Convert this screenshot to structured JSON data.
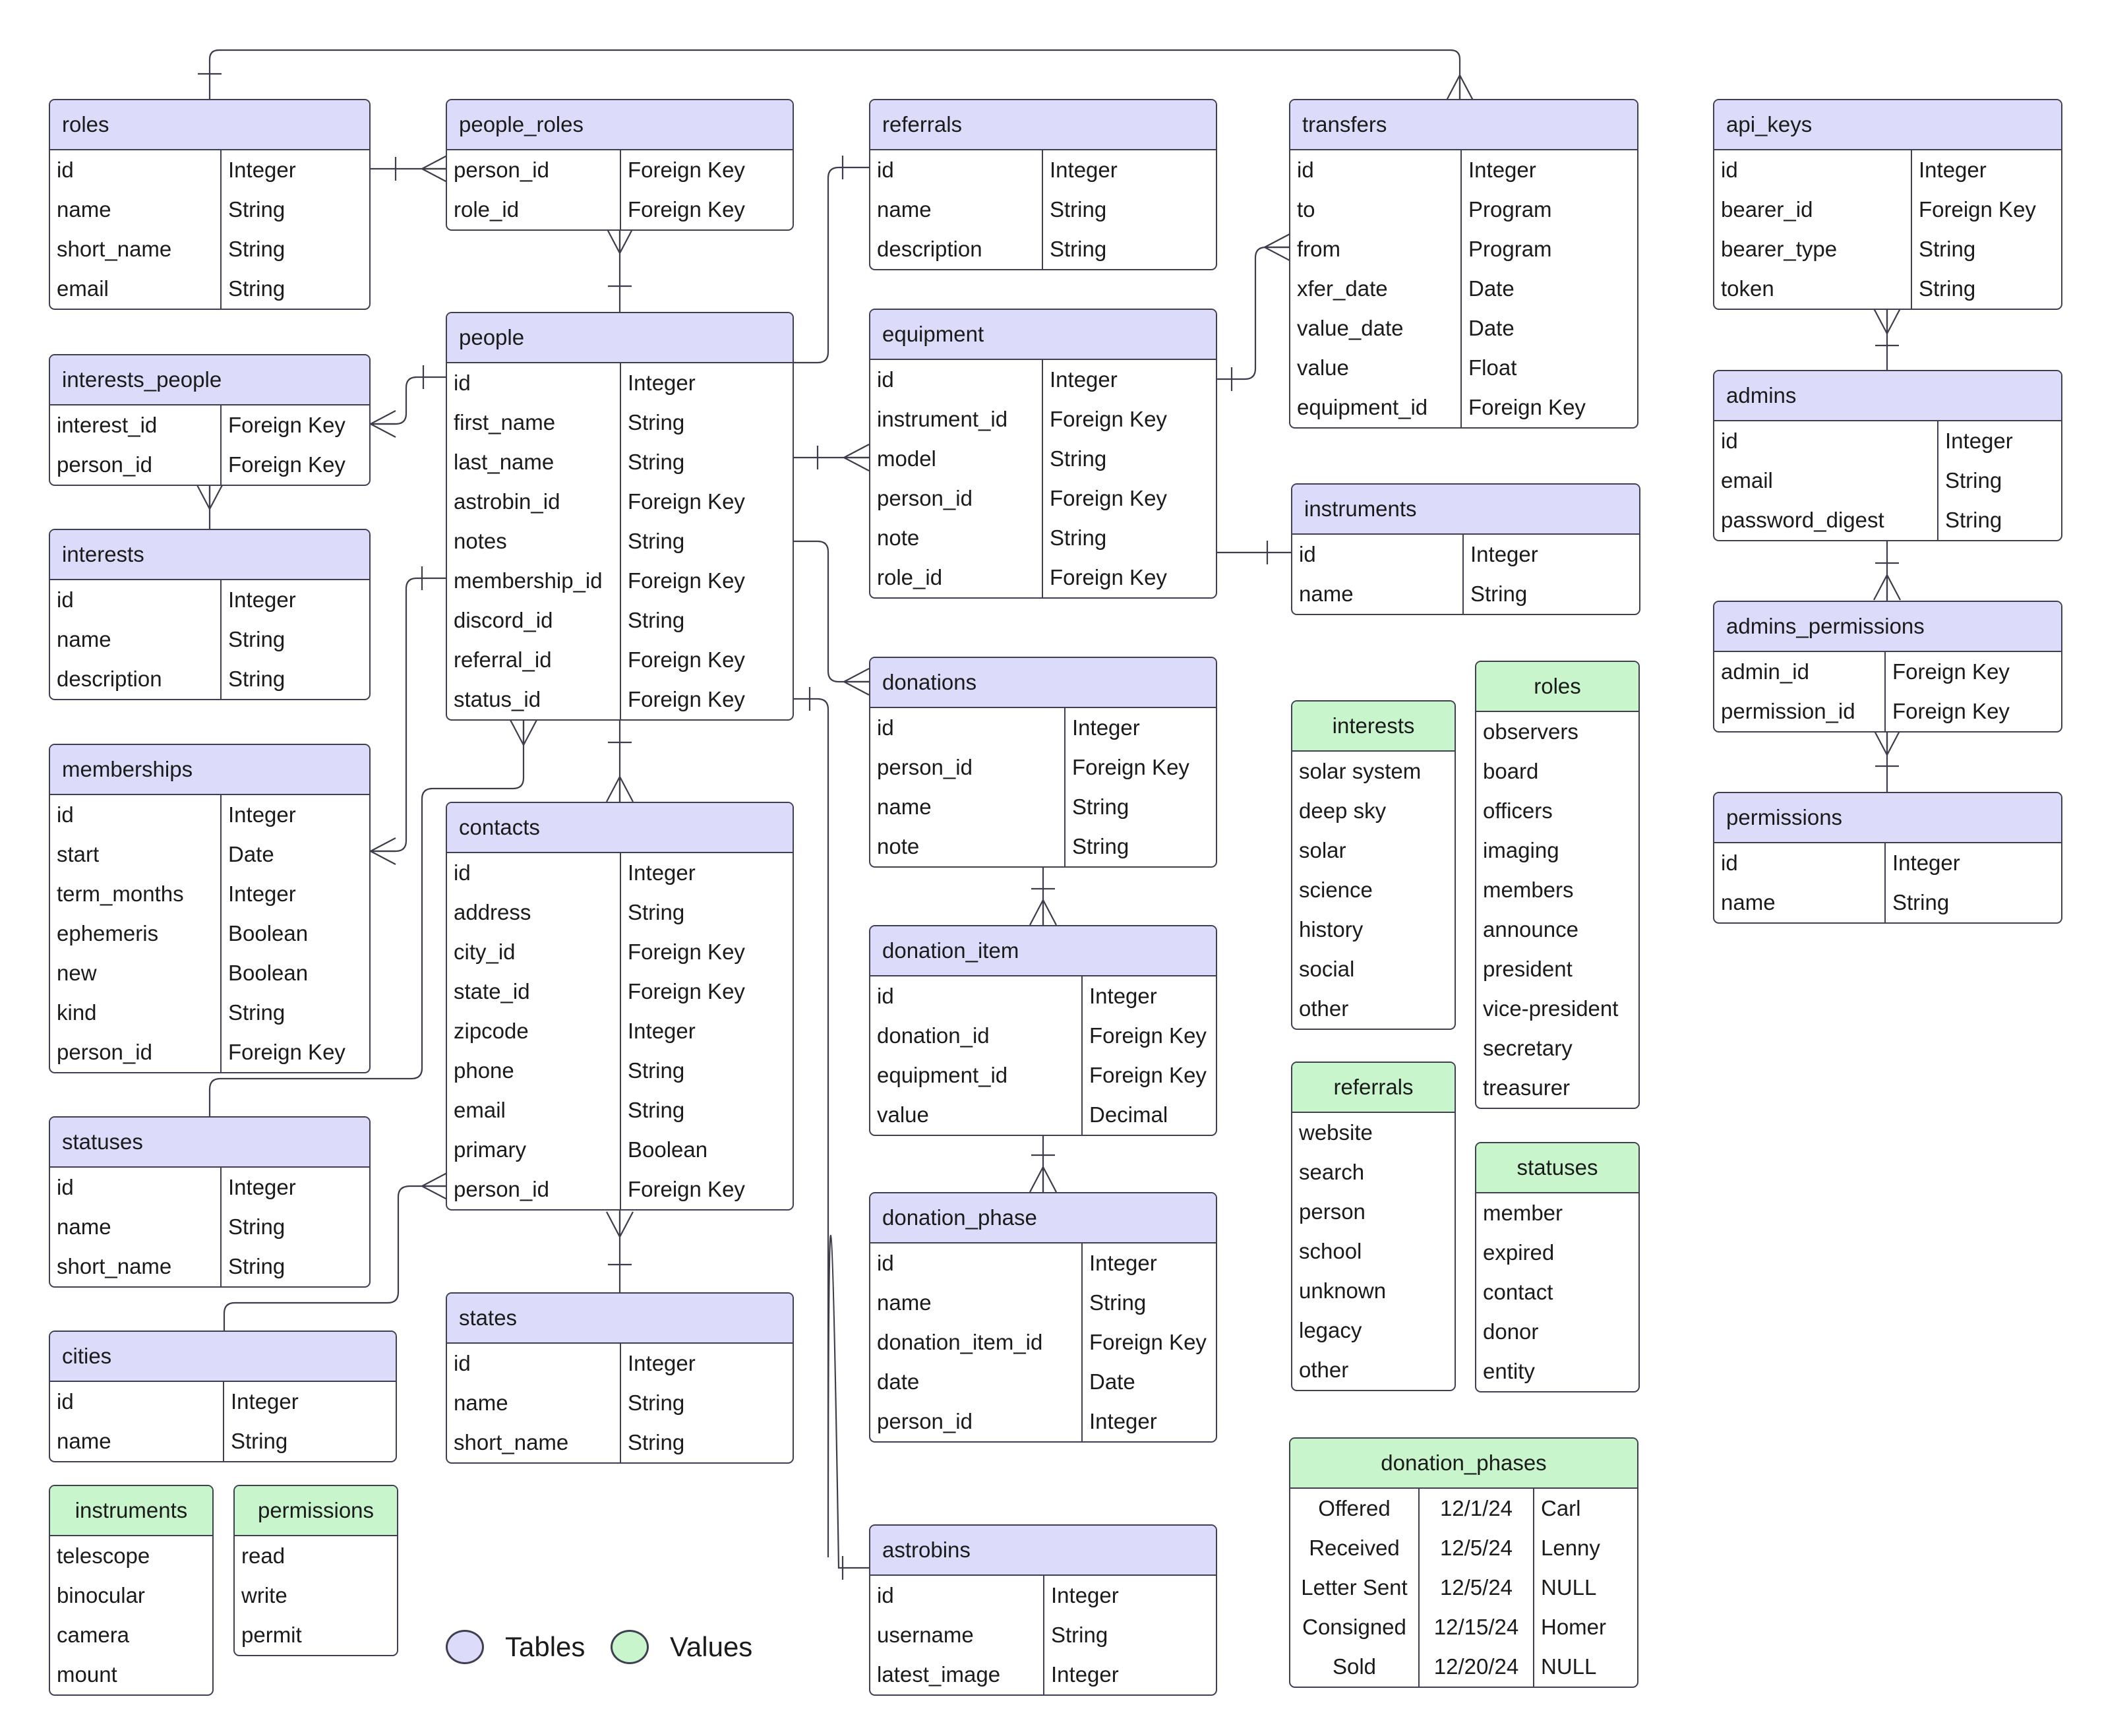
{
  "tables": {
    "roles": {
      "title": "roles",
      "rows": [
        [
          "id",
          "Integer"
        ],
        [
          "name",
          "String"
        ],
        [
          "short_name",
          "String"
        ],
        [
          "email",
          "String"
        ]
      ]
    },
    "people_roles": {
      "title": "people_roles",
      "rows": [
        [
          "person_id",
          "Foreign Key"
        ],
        [
          "role_id",
          "Foreign Key"
        ]
      ]
    },
    "referrals": {
      "title": "referrals",
      "rows": [
        [
          "id",
          "Integer"
        ],
        [
          "name",
          "String"
        ],
        [
          "description",
          "String"
        ]
      ]
    },
    "transfers": {
      "title": "transfers",
      "rows": [
        [
          "id",
          "Integer"
        ],
        [
          "to",
          "Program"
        ],
        [
          "from",
          "Program"
        ],
        [
          "xfer_date",
          "Date"
        ],
        [
          "value_date",
          "Date"
        ],
        [
          "value",
          "Float"
        ],
        [
          "equipment_id",
          "Foreign Key"
        ]
      ]
    },
    "api_keys": {
      "title": "api_keys",
      "rows": [
        [
          "id",
          "Integer"
        ],
        [
          "bearer_id",
          "Foreign Key"
        ],
        [
          "bearer_type",
          "String"
        ],
        [
          "token",
          "String"
        ]
      ]
    },
    "people": {
      "title": "people",
      "rows": [
        [
          "id",
          "Integer"
        ],
        [
          "first_name",
          "String"
        ],
        [
          "last_name",
          "String"
        ],
        [
          "astrobin_id",
          "Foreign Key"
        ],
        [
          "notes",
          "String"
        ],
        [
          "membership_id",
          "Foreign Key"
        ],
        [
          "discord_id",
          "String"
        ],
        [
          "referral_id",
          "Foreign Key"
        ],
        [
          "status_id",
          "Foreign Key"
        ]
      ]
    },
    "equipment": {
      "title": "equipment",
      "rows": [
        [
          "id",
          "Integer"
        ],
        [
          "instrument_id",
          "Foreign Key"
        ],
        [
          "model",
          "String"
        ],
        [
          "person_id",
          "Foreign Key"
        ],
        [
          "note",
          "String"
        ],
        [
          "role_id",
          "Foreign Key"
        ]
      ]
    },
    "admins": {
      "title": "admins",
      "rows": [
        [
          "id",
          "Integer"
        ],
        [
          "email",
          "String"
        ],
        [
          "password_digest",
          "String"
        ]
      ]
    },
    "interests_people": {
      "title": "interests_people",
      "rows": [
        [
          "interest_id",
          "Foreign Key"
        ],
        [
          "person_id",
          "Foreign Key"
        ]
      ]
    },
    "instruments": {
      "title": "instruments",
      "rows": [
        [
          "id",
          "Integer"
        ],
        [
          "name",
          "String"
        ]
      ]
    },
    "interests": {
      "title": "interests",
      "rows": [
        [
          "id",
          "Integer"
        ],
        [
          "name",
          "String"
        ],
        [
          "description",
          "String"
        ]
      ]
    },
    "admins_permissions": {
      "title": "admins_permissions",
      "rows": [
        [
          "admin_id",
          "Foreign Key"
        ],
        [
          "permission_id",
          "Foreign Key"
        ]
      ]
    },
    "donations": {
      "title": "donations",
      "rows": [
        [
          "id",
          "Integer"
        ],
        [
          "person_id",
          "Foreign Key"
        ],
        [
          "name",
          "String"
        ],
        [
          "note",
          "String"
        ]
      ]
    },
    "memberships": {
      "title": "memberships",
      "rows": [
        [
          "id",
          "Integer"
        ],
        [
          "start",
          "Date"
        ],
        [
          "term_months",
          "Integer"
        ],
        [
          "ephemeris",
          "Boolean"
        ],
        [
          "new",
          "Boolean"
        ],
        [
          "kind",
          "String"
        ],
        [
          "person_id",
          "Foreign Key"
        ]
      ]
    },
    "contacts": {
      "title": "contacts",
      "rows": [
        [
          "id",
          "Integer"
        ],
        [
          "address",
          "String"
        ],
        [
          "city_id",
          "Foreign Key"
        ],
        [
          "state_id",
          "Foreign Key"
        ],
        [
          "zipcode",
          "Integer"
        ],
        [
          "phone",
          "String"
        ],
        [
          "email",
          "String"
        ],
        [
          "primary",
          "Boolean"
        ],
        [
          "person_id",
          "Foreign Key"
        ]
      ]
    },
    "permissions": {
      "title": "permissions",
      "rows": [
        [
          "id",
          "Integer"
        ],
        [
          "name",
          "String"
        ]
      ]
    },
    "donation_item": {
      "title": "donation_item",
      "rows": [
        [
          "id",
          "Integer"
        ],
        [
          "donation_id",
          "Foreign Key"
        ],
        [
          "equipment_id",
          "Foreign Key"
        ],
        [
          "value",
          "Decimal"
        ]
      ]
    },
    "statuses": {
      "title": "statuses",
      "rows": [
        [
          "id",
          "Integer"
        ],
        [
          "name",
          "String"
        ],
        [
          "short_name",
          "String"
        ]
      ]
    },
    "donation_phase": {
      "title": "donation_phase",
      "rows": [
        [
          "id",
          "Integer"
        ],
        [
          "name",
          "String"
        ],
        [
          "donation_item_id",
          "Foreign Key"
        ],
        [
          "date",
          "Date"
        ],
        [
          "person_id",
          "Integer"
        ]
      ]
    },
    "states": {
      "title": "states",
      "rows": [
        [
          "id",
          "Integer"
        ],
        [
          "name",
          "String"
        ],
        [
          "short_name",
          "String"
        ]
      ]
    },
    "cities": {
      "title": "cities",
      "rows": [
        [
          "id",
          "Integer"
        ],
        [
          "name",
          "String"
        ]
      ]
    },
    "astrobins": {
      "title": "astrobins",
      "rows": [
        [
          "id",
          "Integer"
        ],
        [
          "username",
          "String"
        ],
        [
          "latest_image",
          "Integer"
        ]
      ]
    }
  },
  "value_lists": {
    "interests": {
      "title": "interests",
      "items": [
        "solar system",
        "deep sky",
        "solar",
        "science",
        "history",
        "social",
        "other"
      ]
    },
    "roles": {
      "title": "roles",
      "items": [
        "observers",
        "board",
        "officers",
        "imaging",
        "members",
        "announce",
        "president",
        "vice-president",
        "secretary",
        "treasurer"
      ]
    },
    "referrals": {
      "title": "referrals",
      "items": [
        "website",
        "search",
        "person",
        "school",
        "unknown",
        "legacy",
        "other"
      ]
    },
    "statuses": {
      "title": "statuses",
      "items": [
        "member",
        "expired",
        "contact",
        "donor",
        "entity"
      ]
    },
    "instruments": {
      "title": "instruments",
      "items": [
        "telescope",
        "binocular",
        "camera",
        "mount"
      ]
    },
    "permissions": {
      "title": "permissions",
      "items": [
        "read",
        "write",
        "permit"
      ]
    }
  },
  "donation_phases": {
    "title": "donation_phases",
    "rows": [
      [
        "Offered",
        "12/1/24",
        "Carl"
      ],
      [
        "Received",
        "12/5/24",
        "Lenny"
      ],
      [
        "Letter Sent",
        "12/5/24",
        "NULL"
      ],
      [
        "Consigned",
        "12/15/24",
        "Homer"
      ],
      [
        "Sold",
        "12/20/24",
        "NULL"
      ]
    ]
  },
  "legend": {
    "tables_label": "Tables",
    "values_label": "Values"
  },
  "colors": {
    "table_header": "#dcdcfa",
    "value_header": "#c8f5cb",
    "border": "#3f3f52",
    "line": "#3c3c4a"
  }
}
